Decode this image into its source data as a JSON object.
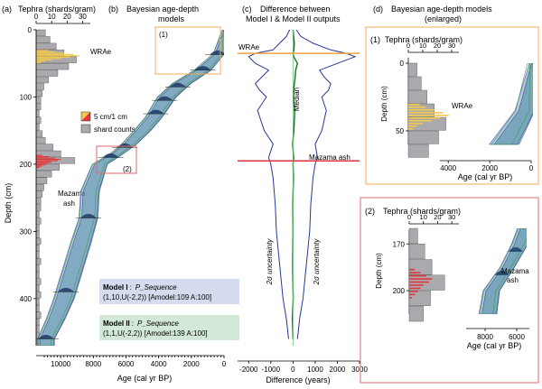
{
  "colors": {
    "bar_gray": "#a9a9ae",
    "bar_yellow": "#f2c94c",
    "bar_red": "#e0383b",
    "band_teal": "#4f8fa0",
    "band_blue": "#8c9ed8",
    "band_green": "#3f9e4a",
    "line_dark_green": "#1a6e2b",
    "line_blue": "#27379a",
    "line_orange": "#f0a33c",
    "line_red": "#e2303a",
    "frame_orange": "#f5a95c",
    "frame_red": "#e26a6d",
    "legend_blue_bg": "#d5dcef",
    "legend_green_bg": "#d3e8d6"
  },
  "panels": {
    "a": {
      "label": "(a)",
      "title": "Tephra (shards/gram)",
      "x_ticks": [
        "0",
        "10",
        "20",
        "30"
      ],
      "depth_label": "Depth (cm)",
      "depth_ticks": [
        "0",
        "100",
        "200",
        "300",
        "400"
      ]
    },
    "b": {
      "label": "(b)",
      "title_line1": "Bayesian age-depth",
      "title_line2": "models",
      "age_label": "Age (cal yr BP)",
      "age_ticks": [
        "10000",
        "8000",
        "6000",
        "4000",
        "2000",
        "0"
      ],
      "inset_tag_1": "(1)",
      "inset_tag_2": "(2)"
    },
    "c": {
      "label": "(c)",
      "title_line1": "Difference between",
      "title_line2": "Model I & Model II outputs",
      "x_label": "Difference (years)",
      "x_ticks": [
        "-2000",
        "-1000",
        "0",
        "1000",
        "2000",
        "3000"
      ],
      "median_label": "Median",
      "unc_label": "2σ uncertainty"
    },
    "d": {
      "label": "(d)",
      "title_line1": "Bayesian age-depth models",
      "title_line2": "(enlarged)",
      "box1_tag": "(1)",
      "box2_tag": "(2)",
      "tephra_title": "Tephra (shards/gram)",
      "box1_x_ticks": [
        "0",
        "10",
        "20",
        "30"
      ],
      "box1_depth_ticks": [
        "0",
        "50"
      ],
      "box1_age_ticks": [
        "4000",
        "2000",
        "0"
      ],
      "box2_x_ticks": [
        "0",
        "10",
        "20",
        "30"
      ],
      "box2_depth_ticks": [
        "170",
        "200"
      ],
      "box2_age_ticks": [
        "8000",
        "6000"
      ],
      "depth_label": "Depth (cm)",
      "age_label": "Age (cal yr BP)"
    }
  },
  "annotations": {
    "wrae": "WRAe",
    "mazama_1": "Mazama",
    "mazama_2": "ash",
    "mazama_ash": "Mazama ash",
    "legend_5cm": "5 cm/1 cm",
    "legend_shards": "shard counts"
  },
  "models": {
    "model1_name": "Model I",
    "model1_func": "P_Sequence",
    "model1_params": "(1,10,U(-2,2)) [Amodel:109 A:100]",
    "model2_name": "Model II",
    "model2_func": "P_Sequence",
    "model2_params": "(1,1,U(-2,2)) [Amodel:139 A:100]"
  },
  "chart_data": [
    {
      "type": "bar",
      "panel": "a",
      "orientation": "horizontal",
      "xlim": [
        0,
        35
      ],
      "ylim": [
        0,
        470
      ],
      "depth_cm": [
        0,
        10,
        20,
        30,
        40,
        50,
        60,
        70,
        80,
        90,
        100,
        110,
        120,
        130,
        140,
        150,
        160,
        170,
        180,
        190,
        200,
        210,
        220,
        230,
        240,
        250,
        260,
        270,
        280,
        290,
        300,
        310,
        320,
        330,
        340,
        350,
        360,
        370,
        380,
        390,
        400,
        410,
        420,
        430,
        440,
        450,
        460
      ],
      "shard_counts": [
        6,
        9,
        13,
        18,
        26,
        21,
        14,
        8,
        5,
        4,
        3,
        3,
        2,
        3,
        2,
        4,
        6,
        11,
        16,
        25,
        15,
        10,
        7,
        5,
        4,
        3,
        3,
        2,
        3,
        2,
        2,
        3,
        2,
        2,
        3,
        2,
        2,
        3,
        2,
        3,
        2,
        2,
        3,
        2,
        2,
        2,
        2
      ],
      "wrae_depths": [
        30,
        32,
        34,
        36,
        38,
        40,
        42,
        44,
        46,
        48
      ],
      "wrae_counts": [
        8,
        12,
        18,
        24,
        28,
        22,
        16,
        10,
        6,
        3
      ],
      "mazama_depths": [
        186,
        188,
        190,
        192,
        194,
        196,
        198,
        200,
        202,
        204
      ],
      "mazama_counts": [
        4,
        8,
        12,
        16,
        14,
        10,
        8,
        6,
        4,
        2
      ]
    },
    {
      "type": "area",
      "panel": "b",
      "xlim": [
        11500,
        0
      ],
      "ylim": [
        0,
        470
      ],
      "depth_cm": [
        0,
        35,
        60,
        80,
        100,
        130,
        150,
        170,
        185,
        200,
        240,
        280,
        320,
        360,
        400,
        430,
        460
      ],
      "median_age": [
        0,
        300,
        1300,
        2600,
        3500,
        4300,
        5000,
        5800,
        6600,
        7600,
        8200,
        8300,
        8800,
        9300,
        9800,
        10300,
        10900
      ],
      "half_width": [
        50,
        300,
        450,
        500,
        500,
        450,
        450,
        400,
        350,
        400,
        500,
        500,
        550,
        550,
        550,
        500,
        450
      ],
      "date_depths": [
        37,
        60,
        85,
        105,
        125,
        175,
        190,
        280,
        390,
        460
      ]
    },
    {
      "type": "line",
      "panel": "c",
      "xlim": [
        -2500,
        3000
      ],
      "ylim": [
        0,
        470
      ],
      "depth_cm": [
        0,
        10,
        20,
        30,
        35,
        40,
        50,
        60,
        70,
        80,
        90,
        100,
        120,
        150,
        170,
        190,
        200,
        220,
        260,
        300,
        350,
        400,
        430,
        460
      ],
      "median": [
        0,
        30,
        60,
        40,
        0,
        30,
        200,
        120,
        100,
        60,
        40,
        20,
        80,
        40,
        -20,
        30,
        0,
        20,
        -10,
        0,
        -20,
        10,
        -30,
        0
      ],
      "lower_2sigma": [
        -150,
        -300,
        -600,
        -900,
        -1700,
        -2000,
        -1700,
        -1100,
        -1400,
        -1700,
        -1500,
        -1200,
        -1600,
        -1300,
        -900,
        -1100,
        -1000,
        -900,
        -800,
        -750,
        -600,
        -450,
        -300,
        -200
      ],
      "upper_2sigma": [
        150,
        350,
        900,
        1700,
        2400,
        2800,
        2000,
        1200,
        1400,
        1700,
        1600,
        1300,
        1500,
        1300,
        1000,
        1100,
        1000,
        900,
        800,
        750,
        600,
        450,
        300,
        200
      ],
      "wrae_depth_cm": 35,
      "mazama_depth_cm": 195
    }
  ]
}
